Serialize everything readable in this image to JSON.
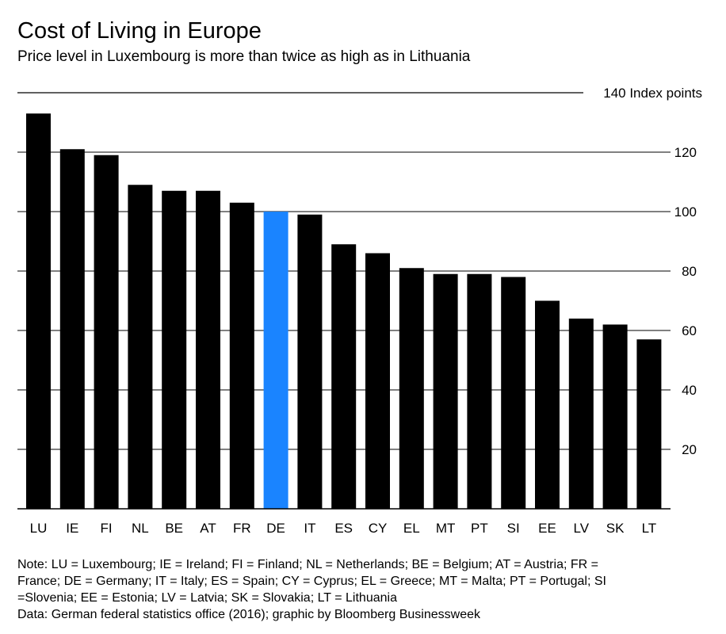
{
  "header": {
    "title": "Cost of Living in Europe",
    "subtitle": "Price level in Luxembourg is more than twice as high as in Lithuania"
  },
  "chart_data": {
    "type": "bar",
    "categories": [
      "LU",
      "IE",
      "FI",
      "NL",
      "BE",
      "AT",
      "FR",
      "DE",
      "IT",
      "ES",
      "CY",
      "EL",
      "MT",
      "PT",
      "SI",
      "EE",
      "LV",
      "SK",
      "LT"
    ],
    "values": [
      133,
      121,
      119,
      109,
      107,
      107,
      103,
      100,
      99,
      89,
      86,
      81,
      79,
      79,
      78,
      70,
      64,
      62,
      57
    ],
    "highlight": "DE",
    "colors": {
      "bar": "#000000",
      "highlight": "#1a84ff",
      "grid": "#000000"
    },
    "ylim": [
      0,
      140
    ],
    "yticks": [
      20,
      40,
      60,
      80,
      100,
      120
    ],
    "top_tick_label": "140 Index points",
    "y_axis_position": "right",
    "grid": true
  },
  "footer": {
    "note": "Note: LU = Luxembourg; IE = Ireland; FI = Finland; NL = Netherlands; BE = Belgium; AT = Austria; FR = France; DE = Germany; IT = Italy; ES = Spain; CY = Cyprus; EL = Greece; MT = Malta; PT = Portugal; SI =Slovenia; EE = Estonia; LV = Latvia; SK = Slovakia; LT = Lithuania",
    "source": "Data: German federal statistics office (2016); graphic by Bloomberg Businessweek"
  }
}
